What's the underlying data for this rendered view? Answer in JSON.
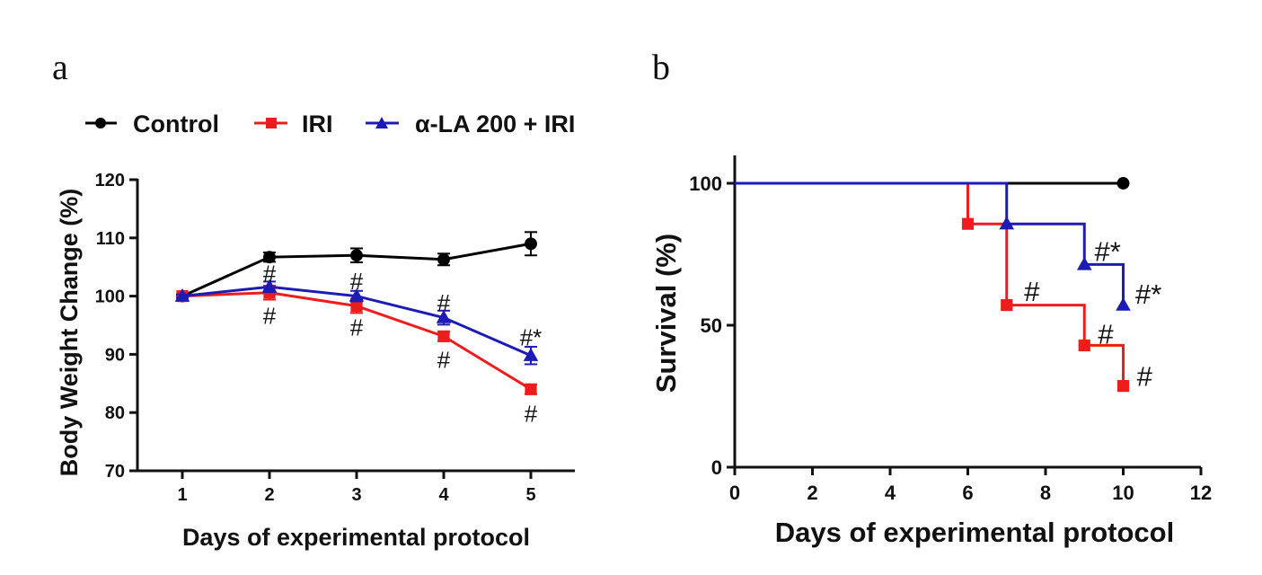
{
  "colors": {
    "control": "#000000",
    "iri": "#ee1c1c",
    "ala": "#1c1cb4",
    "axis": "#111111"
  },
  "chart_data": [
    {
      "type": "line",
      "panel": "a",
      "xlabel": "Days of experimental protocol",
      "ylabel": "Body Weight Change (%)",
      "xlim": [
        0.5,
        5.5
      ],
      "ylim": [
        70,
        120
      ],
      "xticks": [
        1,
        2,
        3,
        4,
        5
      ],
      "yticks": [
        70,
        80,
        90,
        100,
        110,
        120
      ],
      "legend_position": "top",
      "x": [
        1,
        2,
        3,
        4,
        5
      ],
      "series": [
        {
          "name": "Control",
          "key": "control",
          "marker": "circle",
          "values": [
            100,
            106.7,
            107.0,
            106.3,
            109.0
          ],
          "errors": [
            0.3,
            0.8,
            1.2,
            1.0,
            2.0
          ]
        },
        {
          "name": "IRI",
          "key": "iri",
          "marker": "square",
          "values": [
            100,
            100.6,
            98.3,
            93.1,
            84.0
          ],
          "errors": [
            0.3,
            1.2,
            1.2,
            0.8,
            0.8
          ]
        },
        {
          "name": "α-LA 200 + IRI",
          "key": "ala",
          "marker": "triangle",
          "values": [
            100,
            101.6,
            100.0,
            96.3,
            89.8
          ],
          "errors": [
            0.3,
            0.9,
            0.9,
            1.2,
            1.5
          ]
        }
      ],
      "annotations": [
        {
          "text": "#",
          "x": 2,
          "y": 103.9,
          "size": 26
        },
        {
          "text": "#",
          "x": 2,
          "y": 96.6,
          "size": 26
        },
        {
          "text": "#",
          "x": 3,
          "y": 102.6,
          "size": 26
        },
        {
          "text": "#",
          "x": 3,
          "y": 94.6,
          "size": 26
        },
        {
          "text": "#",
          "x": 4,
          "y": 98.9,
          "size": 26
        },
        {
          "text": "#",
          "x": 4,
          "y": 89.1,
          "size": 26
        },
        {
          "text": "#*",
          "x": 5,
          "y": 92.9,
          "size": 26
        },
        {
          "text": "#",
          "x": 5,
          "y": 79.8,
          "size": 26
        }
      ]
    },
    {
      "type": "line",
      "panel": "b",
      "xlabel": "Days of experimental protocol",
      "ylabel": "Survival (%)",
      "xlim": [
        0,
        12
      ],
      "ylim": [
        0,
        110
      ],
      "xticks": [
        0,
        2,
        4,
        6,
        8,
        10,
        12
      ],
      "yticks": [
        0,
        50,
        100
      ],
      "step": true,
      "series": [
        {
          "name": "Control",
          "key": "control",
          "marker": "circle",
          "x": [
            0,
            10
          ],
          "values": [
            100,
            100
          ],
          "marker_x": [
            10
          ],
          "marker_values": [
            100
          ]
        },
        {
          "name": "IRI",
          "key": "iri",
          "marker": "square",
          "x": [
            0,
            6,
            7,
            9,
            10
          ],
          "values": [
            100,
            85.7,
            57.1,
            42.9,
            28.6
          ],
          "marker_x": [
            6,
            7,
            9,
            10
          ],
          "marker_values": [
            85.7,
            57.1,
            42.9,
            28.6
          ]
        },
        {
          "name": "α-LA 200 + IRI",
          "key": "ala",
          "marker": "triangle",
          "x": [
            0,
            7,
            9,
            10
          ],
          "values": [
            100,
            85.7,
            71.4,
            57.1
          ],
          "marker_x": [
            7,
            9,
            10
          ],
          "marker_values": [
            85.7,
            71.4,
            57.1
          ]
        }
      ],
      "annotations": [
        {
          "text": "#*",
          "x": 9.6,
          "y": 76,
          "size": 31
        },
        {
          "text": "#*",
          "x": 10.65,
          "y": 61,
          "size": 31
        },
        {
          "text": "#",
          "x": 7.65,
          "y": 62,
          "size": 31
        },
        {
          "text": "#",
          "x": 9.55,
          "y": 47,
          "size": 31
        },
        {
          "text": "#",
          "x": 10.55,
          "y": 32,
          "size": 31
        }
      ]
    }
  ]
}
